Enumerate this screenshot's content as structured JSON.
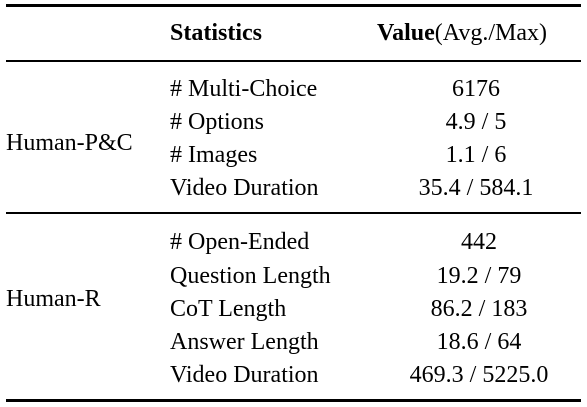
{
  "header": {
    "statistics": "Statistics",
    "value_bold": "Value",
    "value_suffix": "(Avg./Max)"
  },
  "groups": [
    {
      "name": "Human-P&C",
      "rows": [
        {
          "stat": "# Multi-Choice",
          "value": "6176"
        },
        {
          "stat": "# Options",
          "value": "4.9 / 5"
        },
        {
          "stat": "# Images",
          "value": "1.1 / 6"
        },
        {
          "stat": "Video Duration",
          "value": "35.4 / 584.1"
        }
      ]
    },
    {
      "name": "Human-R",
      "rows": [
        {
          "stat": "# Open-Ended",
          "value": "442"
        },
        {
          "stat": "Question Length",
          "value": "19.2 / 79"
        },
        {
          "stat": "CoT Length",
          "value": "86.2 / 183"
        },
        {
          "stat": "Answer Length",
          "value": "18.6 / 64"
        },
        {
          "stat": "Video Duration",
          "value": "469.3 / 5225.0"
        }
      ]
    }
  ]
}
